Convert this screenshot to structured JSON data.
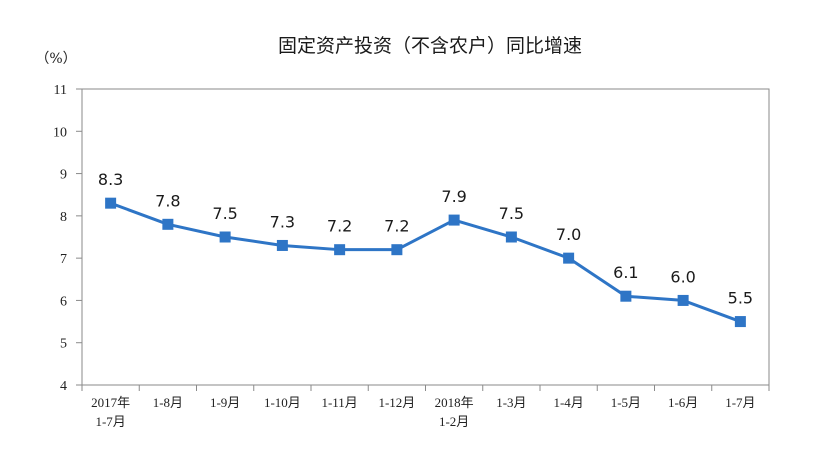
{
  "chart_data": {
    "type": "line",
    "title": "固定资产投资（不含农户）同比增速",
    "unit_label": "（%）",
    "categories": [
      [
        "2017年",
        "1-7月"
      ],
      [
        "1-8月"
      ],
      [
        "1-9月"
      ],
      [
        "1-10月"
      ],
      [
        "1-11月"
      ],
      [
        "1-12月"
      ],
      [
        "2018年",
        "1-2月"
      ],
      [
        "1-3月"
      ],
      [
        "1-4月"
      ],
      [
        "1-5月"
      ],
      [
        "1-6月"
      ],
      [
        "1-7月"
      ]
    ],
    "series": [
      {
        "values": [
          8.3,
          7.8,
          7.5,
          7.3,
          7.2,
          7.2,
          7.9,
          7.5,
          7.0,
          6.1,
          6.0,
          5.5
        ],
        "data_labels": [
          "8.3",
          "7.8",
          "7.5",
          "7.3",
          "7.2",
          "7.2",
          "7.9",
          "7.5",
          "7.0",
          "6.1",
          "6.0",
          "5.5"
        ],
        "color": "#2E75C6"
      }
    ],
    "ylim": [
      4,
      11
    ],
    "yticks": [
      4,
      5,
      6,
      7,
      8,
      9,
      10,
      11
    ],
    "grid": false,
    "legend": "none",
    "frame_color": "#7f7f7f"
  }
}
